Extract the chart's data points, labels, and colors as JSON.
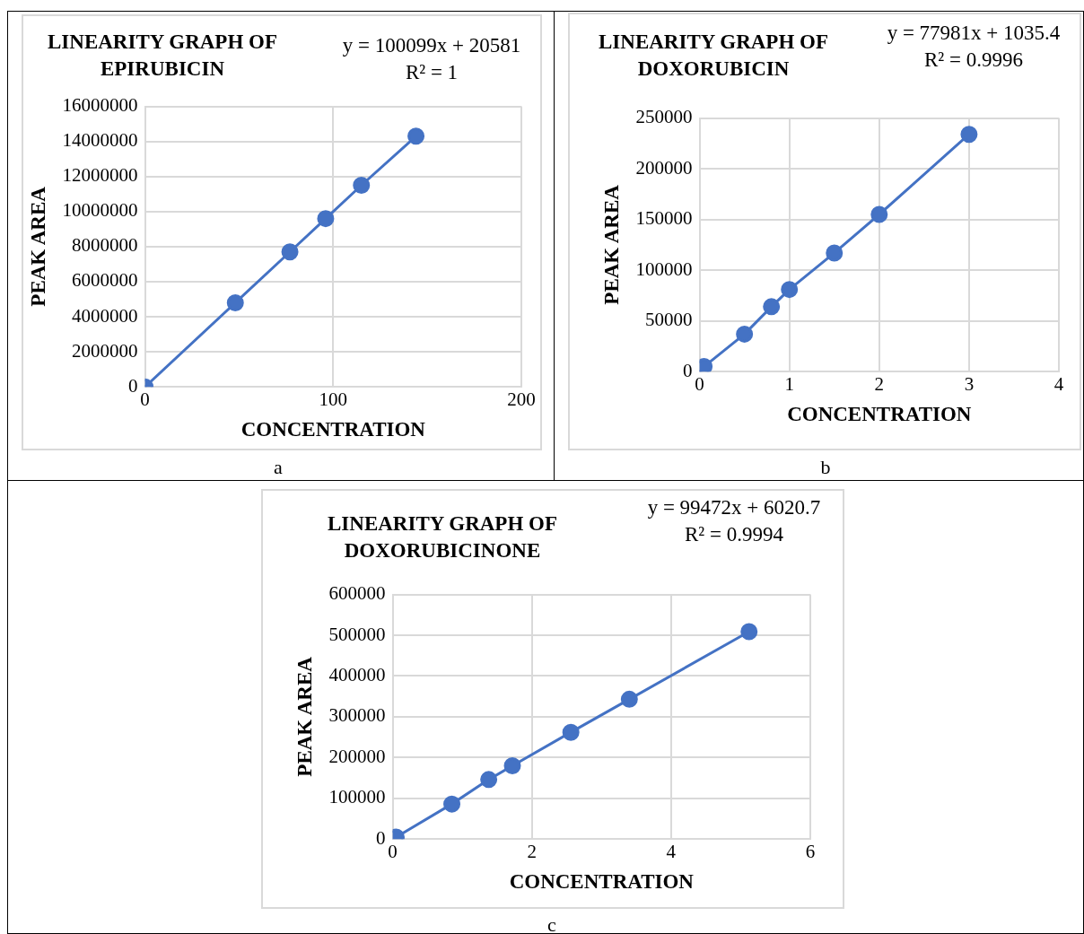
{
  "chart_data": [
    {
      "type": "line",
      "title": "LINEARITY  GRAPH OF EPIRUBICIN",
      "xlabel": "CONCENTRATION",
      "ylabel": "PEAK AREA",
      "annotations": [
        "y = 100099x + 20581",
        "R² = 1",
        "a"
      ],
      "x": [
        0,
        48,
        77,
        96,
        115,
        144
      ],
      "series": [
        {
          "color": "#4472c4",
          "values": [
            0,
            4800000,
            7700000,
            9600000,
            11500000,
            14300000
          ]
        }
      ],
      "xlim": [
        0,
        200
      ],
      "xticks": [
        0,
        100,
        200
      ],
      "ylim": [
        0,
        16000000
      ],
      "yticks": [
        0,
        2000000,
        4000000,
        6000000,
        8000000,
        10000000,
        12000000,
        14000000,
        16000000
      ],
      "grid": true,
      "legend": false,
      "marker": "circle",
      "line_style": "solid"
    },
    {
      "type": "line",
      "title": "LINEARITY  GRAPH OF DOXORUBICIN",
      "xlabel": "CONCENTRATION",
      "ylabel": "PEAK AREA",
      "annotations": [
        "y = 77981x + 1035.4",
        "R² = 0.9996",
        "b"
      ],
      "x": [
        0.05,
        0.5,
        0.8,
        1,
        1.5,
        2,
        3
      ],
      "series": [
        {
          "color": "#4472c4",
          "values": [
            5000,
            37000,
            64000,
            81000,
            117000,
            155000,
            234000
          ]
        }
      ],
      "xlim": [
        0,
        4
      ],
      "xticks": [
        0,
        1,
        2,
        3,
        4
      ],
      "ylim": [
        0,
        250000
      ],
      "yticks": [
        0,
        50000,
        100000,
        150000,
        200000,
        250000
      ],
      "grid": true,
      "legend": false,
      "marker": "circle",
      "line_style": "solid"
    },
    {
      "type": "line",
      "title": "LINEARITY  GRAPH OF DOXORUBICINONE",
      "xlabel": "CONCENTRATION",
      "ylabel": "PEAK AREA",
      "annotations": [
        "y = 99472x + 6020.7",
        "R² = 0.9994",
        "c"
      ],
      "x": [
        0.05,
        0.85,
        1.38,
        1.72,
        2.56,
        3.4,
        5.12
      ],
      "series": [
        {
          "color": "#4472c4",
          "values": [
            5000,
            86000,
            146000,
            180000,
            262000,
            343000,
            509000
          ]
        }
      ],
      "xlim": [
        0,
        6
      ],
      "xticks": [
        0,
        2,
        4,
        6
      ],
      "ylim": [
        0,
        600000
      ],
      "yticks": [
        0,
        100000,
        200000,
        300000,
        400000,
        500000,
        600000
      ],
      "grid": true,
      "legend": false,
      "marker": "circle",
      "line_style": "solid"
    }
  ]
}
